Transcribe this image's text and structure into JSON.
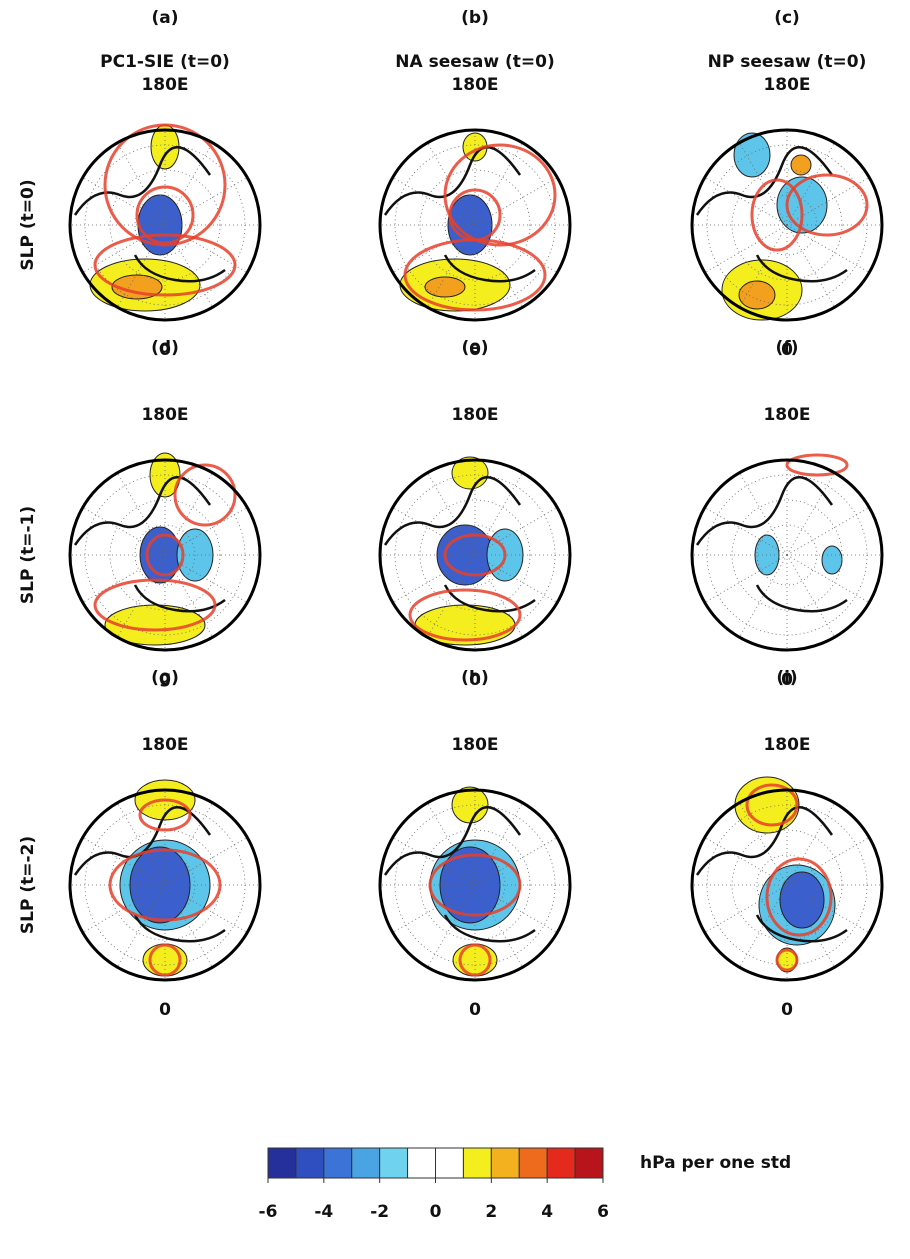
{
  "columns": [
    {
      "title": "PC1-SIE (t=0)"
    },
    {
      "title": "NA seesaw (t=0)"
    },
    {
      "title": "NP seesaw (t=0)"
    }
  ],
  "rows": [
    {
      "label": "SLP (t=0)"
    },
    {
      "label": "SLP (t=-1)"
    },
    {
      "label": "SLP (t=-2)"
    }
  ],
  "panels": [
    {
      "letter": "(a)",
      "top_label": "180E",
      "bottom_label": "0"
    },
    {
      "letter": "(b)",
      "top_label": "180E",
      "bottom_label": "0"
    },
    {
      "letter": "(c)",
      "top_label": "180E",
      "bottom_label": "0"
    },
    {
      "letter": "(d)",
      "top_label": "180E",
      "bottom_label": "0"
    },
    {
      "letter": "(e)",
      "top_label": "180E",
      "bottom_label": "0"
    },
    {
      "letter": "(f)",
      "top_label": "180E",
      "bottom_label": "0"
    },
    {
      "letter": "(g)",
      "top_label": "180E",
      "bottom_label": "0"
    },
    {
      "letter": "(h)",
      "top_label": "180E",
      "bottom_label": "0"
    },
    {
      "letter": "(i)",
      "top_label": "180E",
      "bottom_label": "0"
    }
  ],
  "colorbar": {
    "lim": [
      -6,
      6
    ],
    "ticks": [
      -6,
      -4,
      -2,
      0,
      2,
      4,
      6
    ],
    "label": "hPa per one std",
    "colors": [
      "#25309a",
      "#2f4fc0",
      "#3b73d6",
      "#4aa4e4",
      "#6fd2ee",
      "#ffffff",
      "#ffffff",
      "#f5ee1e",
      "#f3b11f",
      "#ee6a1c",
      "#e42a1c",
      "#b8141c"
    ]
  }
}
